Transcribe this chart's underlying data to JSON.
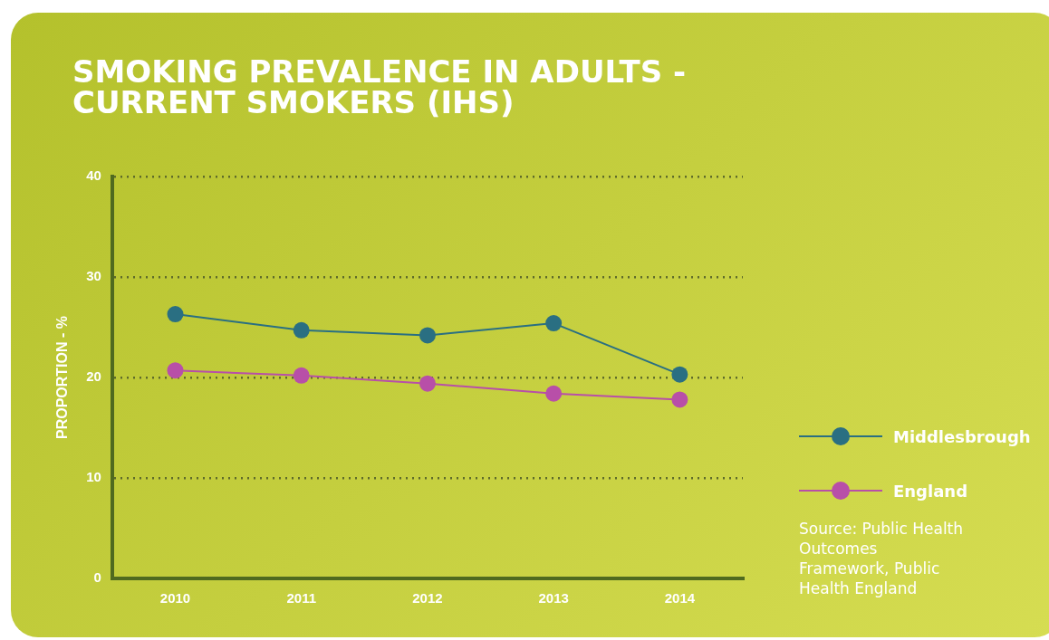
{
  "chart_data": {
    "type": "line",
    "title": "SMOKING PREVALENCE IN ADULTS - CURRENT SMOKERS (IHS)",
    "ylabel": "PROPORTION - %",
    "categories": [
      "2010",
      "2011",
      "2012",
      "2013",
      "2014"
    ],
    "series": [
      {
        "name": "Middlesbrough",
        "color": "#2a6f82",
        "values": [
          26.3,
          24.7,
          24.2,
          25.4,
          20.3
        ]
      },
      {
        "name": "England",
        "color": "#b84fa8",
        "values": [
          20.7,
          20.2,
          19.4,
          18.4,
          17.8
        ]
      }
    ],
    "ylim": [
      0,
      40
    ],
    "yticks": [
      0,
      10,
      20,
      30,
      40
    ],
    "grid": "y",
    "legend": "right",
    "marker": "circle",
    "line_style": "solid",
    "annotations": [
      "Source: Public Health Outcomes Framework, Public Health England"
    ]
  }
}
